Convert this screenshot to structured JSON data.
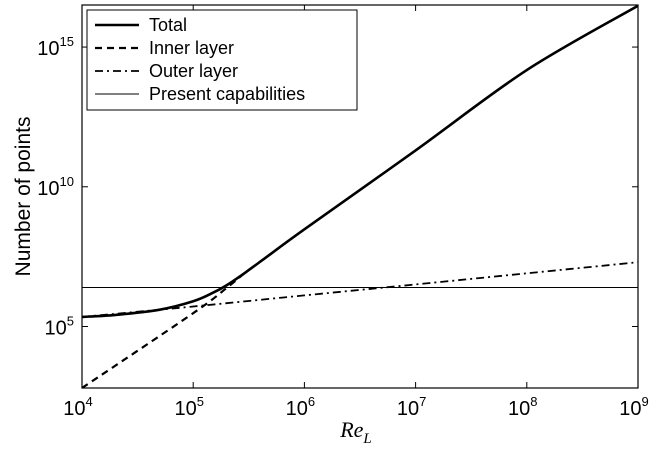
{
  "chart_data": {
    "type": "line",
    "xlabel": "Re",
    "xlabel_sub": "L",
    "ylabel": "Number of points",
    "x_scale": "log",
    "y_scale": "log",
    "xlim": [
      10000,
      1000000000
    ],
    "ylim": [
      630,
      3.2e+16
    ],
    "grid": false,
    "legend_position": "top-left",
    "x_ticks": [
      {
        "base": "10",
        "exp": "4",
        "value": 10000
      },
      {
        "base": "10",
        "exp": "5",
        "value": 100000
      },
      {
        "base": "10",
        "exp": "6",
        "value": 1000000
      },
      {
        "base": "10",
        "exp": "7",
        "value": 10000000
      },
      {
        "base": "10",
        "exp": "8",
        "value": 100000000
      },
      {
        "base": "10",
        "exp": "9",
        "value": 1000000000
      }
    ],
    "y_ticks": [
      {
        "base": "10",
        "exp": "5",
        "value": 100000
      },
      {
        "base": "10",
        "exp": "10",
        "value": 10000000000
      },
      {
        "base": "10",
        "exp": "15",
        "value": 1000000000000000.0
      }
    ],
    "series": [
      {
        "name": "Total",
        "style": "solid-thick",
        "x": [
          10000,
          20000,
          50000,
          100000,
          150000,
          200000,
          300000,
          500000,
          1000000,
          10000000,
          100000000,
          1000000000
        ],
        "y": [
          220000,
          260000,
          400000,
          800000,
          1600000,
          3000000,
          9000000,
          40000000,
          300000000,
          200000000000,
          150000000000000.0,
          3e+16
        ]
      },
      {
        "name": "Inner layer",
        "style": "dashed",
        "x": [
          10000,
          100000,
          200000,
          300000,
          500000
        ],
        "y": [
          630,
          300000,
          2400000,
          9000000,
          40000000
        ]
      },
      {
        "name": "Outer layer",
        "style": "dash-dot",
        "x": [
          10000,
          100000,
          1000000,
          10000000,
          100000000,
          1000000000
        ],
        "y": [
          220000,
          520000,
          1300000,
          3200000,
          8000000,
          20000000
        ]
      },
      {
        "name": "Present capabilities",
        "style": "solid-thin",
        "x": [
          10000,
          1000000000
        ],
        "y": [
          2500000,
          2500000
        ]
      }
    ]
  }
}
